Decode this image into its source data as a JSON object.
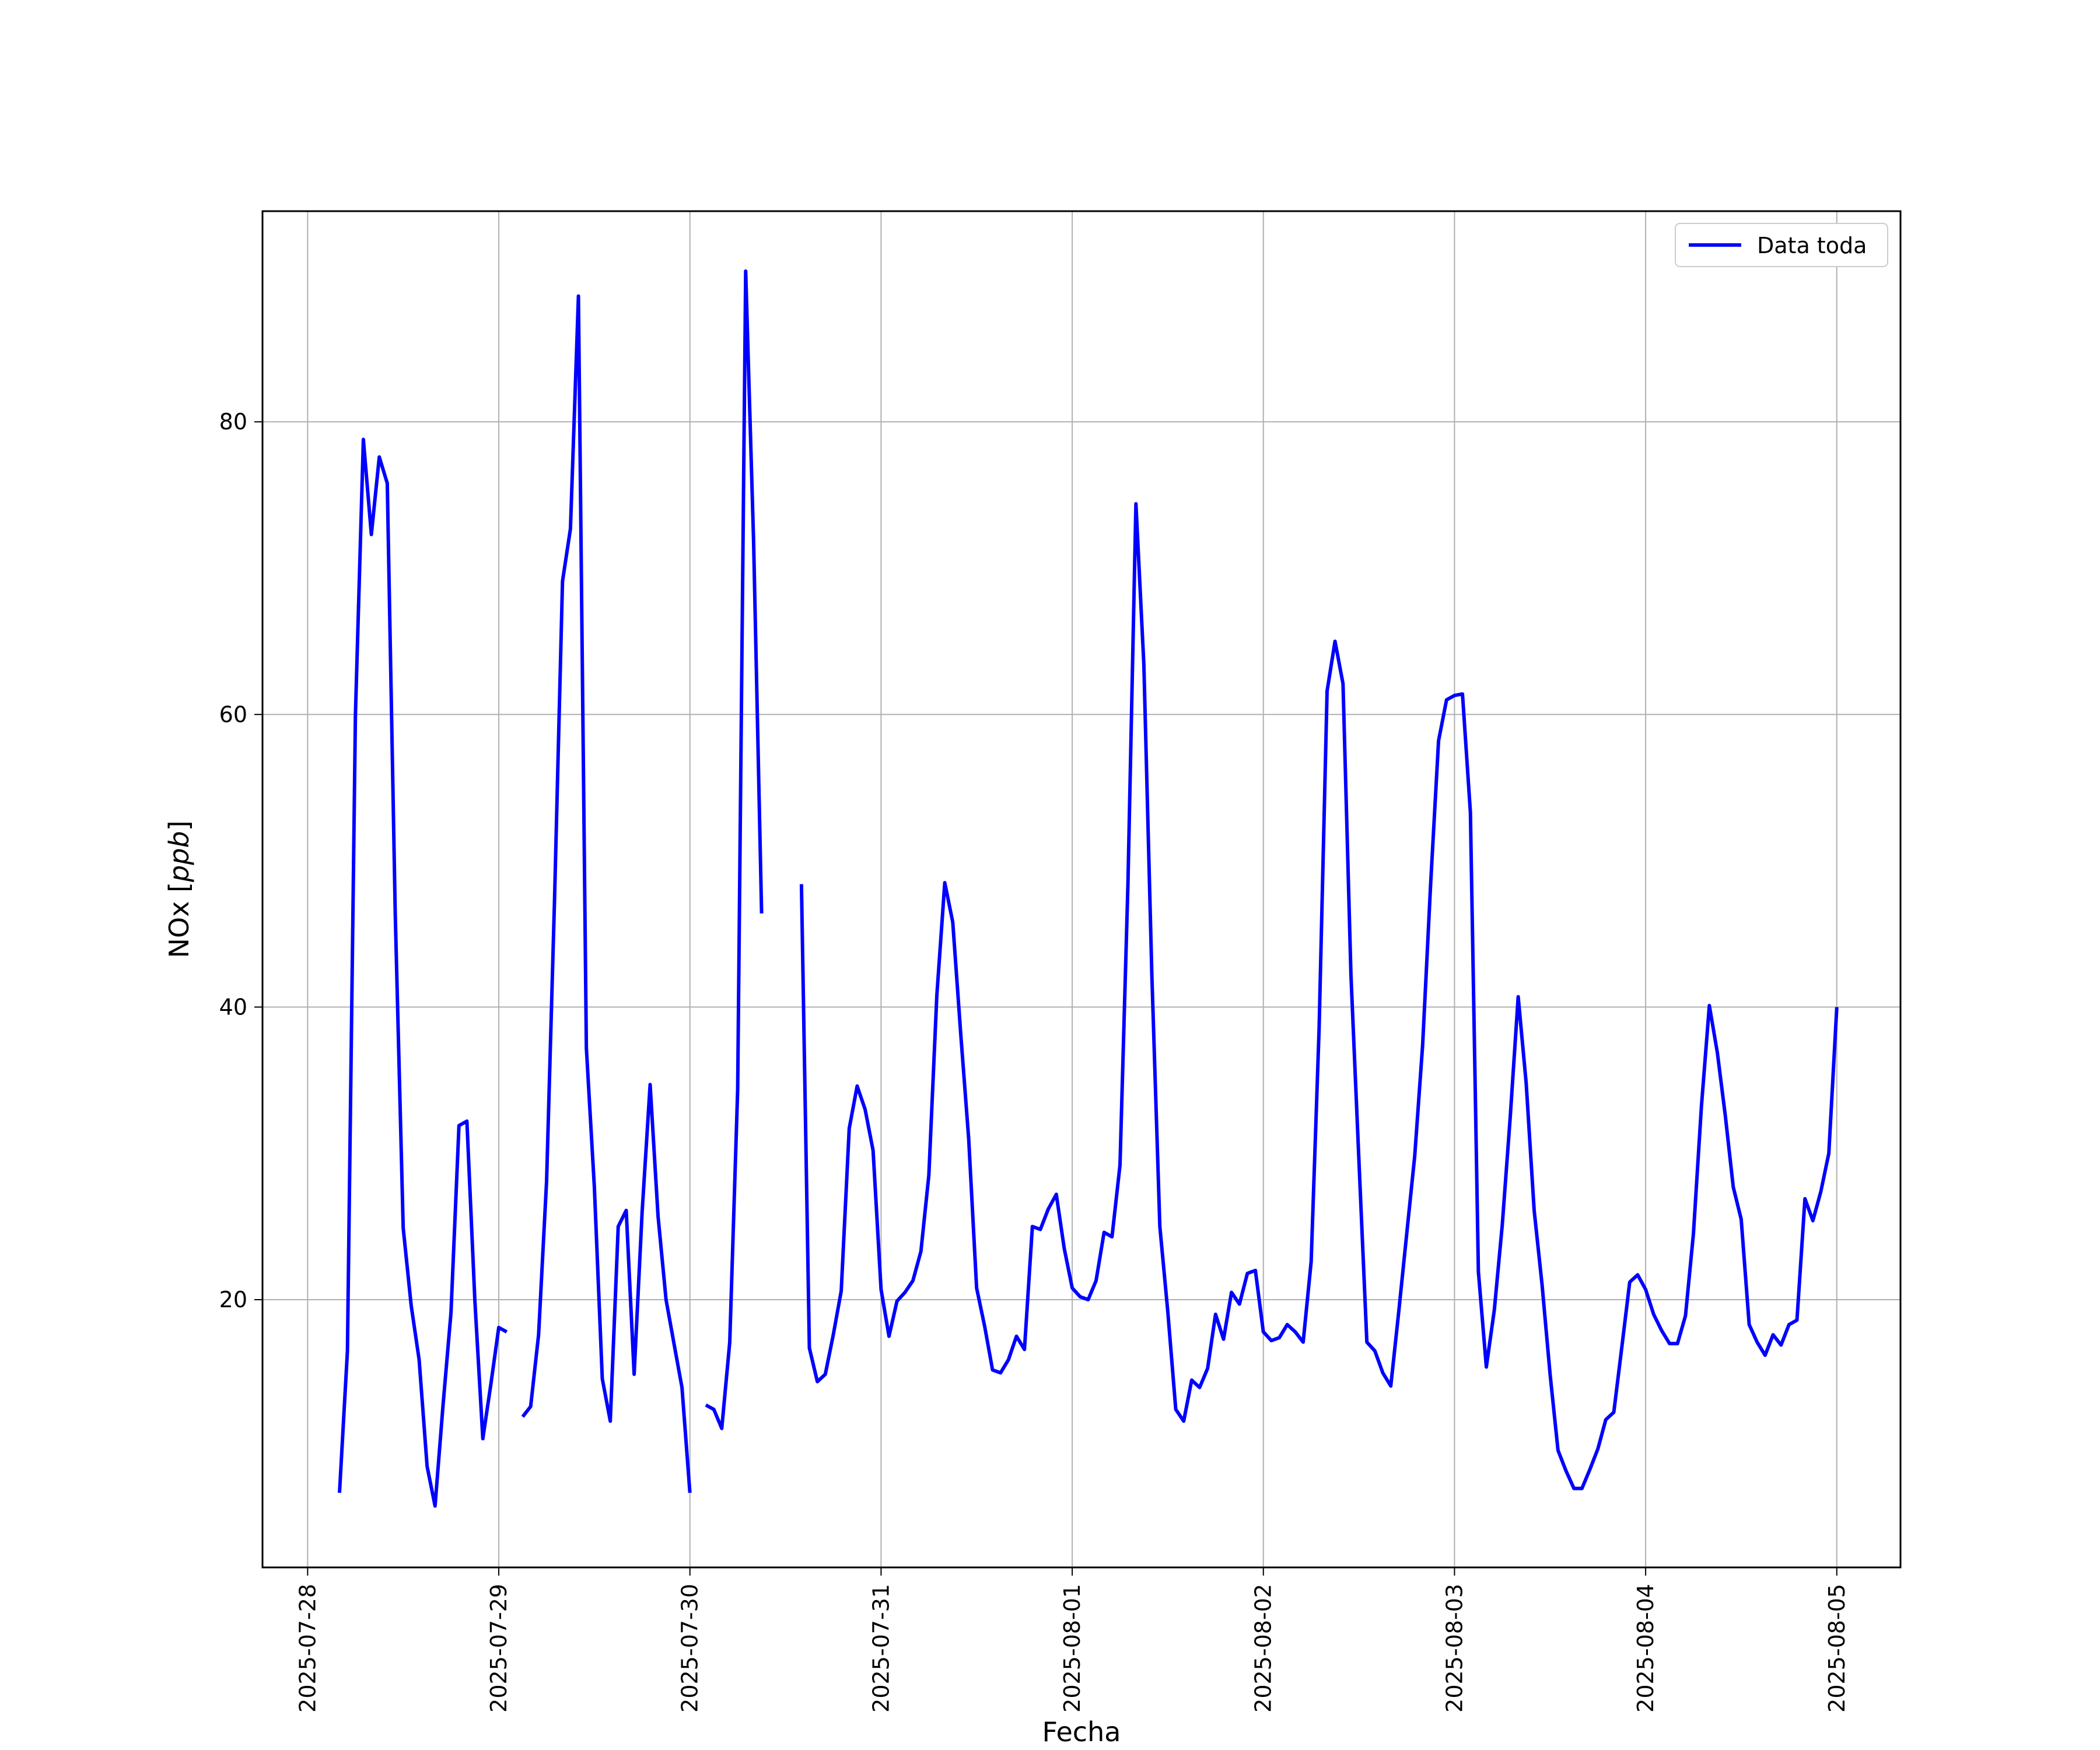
{
  "chart_data": {
    "type": "line",
    "title": "",
    "xlabel": "Fecha",
    "ylabel_prefix": "NOx [",
    "ylabel_unit": "ppb",
    "ylabel_suffix": "]",
    "x_tick_labels": [
      "2025-07-28",
      "2025-07-29",
      "2025-07-30",
      "2025-07-31",
      "2025-08-01",
      "2025-08-02",
      "2025-08-03",
      "2025-08-04",
      "2025-08-05"
    ],
    "y_ticks": [
      20,
      40,
      60,
      80
    ],
    "xlim": [
      "2025-07-27T18:20",
      "2025-08-05T08:00"
    ],
    "ylim": [
      1.7,
      94.4
    ],
    "grid": true,
    "legend_position": "upper-right",
    "series": [
      {
        "name": "Data toda",
        "color": "#0000ff",
        "points": [
          [
            "2025-07-28T04:00",
            6.8
          ],
          [
            "2025-07-28T05:00",
            16.5
          ],
          [
            "2025-07-28T06:00",
            60
          ],
          [
            "2025-07-28T07:00",
            78.8
          ],
          [
            "2025-07-28T08:00",
            72.3
          ],
          [
            "2025-07-28T09:00",
            77.6
          ],
          [
            "2025-07-28T10:00",
            75.8
          ],
          [
            "2025-07-28T11:00",
            46.3
          ],
          [
            "2025-07-28T12:00",
            24.9
          ],
          [
            "2025-07-28T13:00",
            19.6
          ],
          [
            "2025-07-28T14:00",
            15.9
          ],
          [
            "2025-07-28T15:00",
            8.6
          ],
          [
            "2025-07-28T16:00",
            5.9
          ],
          [
            "2025-07-28T17:00",
            12.8
          ],
          [
            "2025-07-28T18:00",
            19.1
          ],
          [
            "2025-07-28T19:00",
            31.9
          ],
          [
            "2025-07-28T20:00",
            32.2
          ],
          [
            "2025-07-28T21:00",
            19.9
          ],
          [
            "2025-07-28T22:00",
            10.5
          ],
          [
            "2025-07-28T23:00",
            14.2
          ],
          [
            "2025-07-29T00:00",
            18.1
          ],
          [
            "2025-07-29T01:00",
            17.8
          ],
          null,
          [
            "2025-07-29T03:00",
            12.0
          ],
          [
            "2025-07-29T04:00",
            12.7
          ],
          [
            "2025-07-29T05:00",
            17.6
          ],
          [
            "2025-07-29T06:00",
            28.1
          ],
          [
            "2025-07-29T07:00",
            47.3
          ],
          [
            "2025-07-29T08:00",
            69.1
          ],
          [
            "2025-07-29T09:00",
            72.7
          ],
          [
            "2025-07-29T10:00",
            88.6
          ],
          [
            "2025-07-29T11:00",
            37.2
          ],
          [
            "2025-07-29T12:00",
            27.7
          ],
          [
            "2025-07-29T13:00",
            14.6
          ],
          [
            "2025-07-29T14:00",
            11.7
          ],
          [
            "2025-07-29T15:00",
            25.0
          ],
          [
            "2025-07-29T16:00",
            26.1
          ],
          [
            "2025-07-29T17:00",
            14.9
          ],
          [
            "2025-07-29T18:00",
            26.0
          ],
          [
            "2025-07-29T19:00",
            34.7
          ],
          [
            "2025-07-29T20:00",
            25.7
          ],
          [
            "2025-07-29T21:00",
            20.0
          ],
          [
            "2025-07-29T22:00",
            17.0
          ],
          [
            "2025-07-29T23:00",
            14.0
          ],
          [
            "2025-07-30T00:00",
            6.8
          ],
          null,
          [
            "2025-07-30T02:00",
            12.8
          ],
          [
            "2025-07-30T03:00",
            12.5
          ],
          [
            "2025-07-30T04:00",
            11.2
          ],
          [
            "2025-07-30T05:00",
            17.1
          ],
          [
            "2025-07-30T06:00",
            34.4
          ],
          [
            "2025-07-30T07:00",
            90.3
          ],
          [
            "2025-07-30T08:00",
            71.8
          ],
          [
            "2025-07-30T09:00",
            46.4
          ],
          null,
          [
            "2025-07-30T14:00",
            48.4
          ],
          [
            "2025-07-30T15:00",
            16.7
          ],
          [
            "2025-07-30T16:00",
            14.4
          ],
          [
            "2025-07-30T17:00",
            14.9
          ],
          [
            "2025-07-30T18:00",
            17.6
          ],
          [
            "2025-07-30T19:00",
            20.6
          ],
          [
            "2025-07-30T20:00",
            31.7
          ],
          [
            "2025-07-30T21:00",
            34.6
          ],
          [
            "2025-07-30T22:00",
            33.0
          ],
          [
            "2025-07-30T23:00",
            30.2
          ],
          [
            "2025-07-31T00:00",
            20.7
          ],
          [
            "2025-07-31T01:00",
            17.5
          ],
          [
            "2025-07-31T02:00",
            19.9
          ],
          [
            "2025-07-31T03:00",
            20.5
          ],
          [
            "2025-07-31T04:00",
            21.3
          ],
          [
            "2025-07-31T05:00",
            23.3
          ],
          [
            "2025-07-31T06:00",
            28.5
          ],
          [
            "2025-07-31T07:00",
            40.8
          ],
          [
            "2025-07-31T08:00",
            48.5
          ],
          [
            "2025-07-31T09:00",
            45.8
          ],
          [
            "2025-07-31T10:00",
            38.2
          ],
          [
            "2025-07-31T11:00",
            31.0
          ],
          [
            "2025-07-31T12:00",
            20.8
          ],
          [
            "2025-07-31T13:00",
            18.2
          ],
          [
            "2025-07-31T14:00",
            15.2
          ],
          [
            "2025-07-31T15:00",
            15.0
          ],
          [
            "2025-07-31T16:00",
            15.9
          ],
          [
            "2025-07-31T17:00",
            17.5
          ],
          [
            "2025-07-31T18:00",
            16.6
          ],
          [
            "2025-07-31T19:00",
            25.0
          ],
          [
            "2025-07-31T20:00",
            24.8
          ],
          [
            "2025-07-31T21:00",
            26.2
          ],
          [
            "2025-07-31T22:00",
            27.2
          ],
          [
            "2025-07-31T23:00",
            23.5
          ],
          [
            "2025-08-01T00:00",
            20.8
          ],
          [
            "2025-08-01T01:00",
            20.2
          ],
          [
            "2025-08-01T02:00",
            20.0
          ],
          [
            "2025-08-01T03:00",
            21.3
          ],
          [
            "2025-08-01T04:00",
            24.6
          ],
          [
            "2025-08-01T05:00",
            24.3
          ],
          [
            "2025-08-01T06:00",
            29.2
          ],
          [
            "2025-08-01T07:00",
            48.4
          ],
          [
            "2025-08-01T08:00",
            74.4
          ],
          [
            "2025-08-01T09:00",
            63.4
          ],
          [
            "2025-08-01T10:00",
            42.2
          ],
          [
            "2025-08-01T11:00",
            25.0
          ],
          [
            "2025-08-01T12:00",
            19.2
          ],
          [
            "2025-08-01T13:00",
            12.5
          ],
          [
            "2025-08-01T14:00",
            11.7
          ],
          [
            "2025-08-01T15:00",
            14.5
          ],
          [
            "2025-08-01T16:00",
            14.0
          ],
          [
            "2025-08-01T17:00",
            15.3
          ],
          [
            "2025-08-01T18:00",
            19.0
          ],
          [
            "2025-08-01T19:00",
            17.3
          ],
          [
            "2025-08-01T20:00",
            20.5
          ],
          [
            "2025-08-01T21:00",
            19.7
          ],
          [
            "2025-08-01T22:00",
            21.8
          ],
          [
            "2025-08-01T23:00",
            22.0
          ],
          [
            "2025-08-02T00:00",
            17.8
          ],
          [
            "2025-08-02T01:00",
            17.2
          ],
          [
            "2025-08-02T02:00",
            17.4
          ],
          [
            "2025-08-02T03:00",
            18.3
          ],
          [
            "2025-08-02T04:00",
            17.8
          ],
          [
            "2025-08-02T05:00",
            17.1
          ],
          [
            "2025-08-02T06:00",
            22.6
          ],
          [
            "2025-08-02T07:00",
            38.5
          ],
          [
            "2025-08-02T08:00",
            61.6
          ],
          [
            "2025-08-02T09:00",
            65.0
          ],
          [
            "2025-08-02T10:00",
            62.1
          ],
          [
            "2025-08-02T11:00",
            42.2
          ],
          [
            "2025-08-02T12:00",
            29.5
          ],
          [
            "2025-08-02T13:00",
            17.1
          ],
          [
            "2025-08-02T14:00",
            16.5
          ],
          [
            "2025-08-02T15:00",
            15.0
          ],
          [
            "2025-08-02T16:00",
            14.1
          ],
          [
            "2025-08-02T17:00",
            19.2
          ],
          [
            "2025-08-02T18:00",
            24.5
          ],
          [
            "2025-08-02T19:00",
            29.8
          ],
          [
            "2025-08-02T20:00",
            37.4
          ],
          [
            "2025-08-02T21:00",
            48.4
          ],
          [
            "2025-08-02T22:00",
            58.2
          ],
          [
            "2025-08-02T23:00",
            61.0
          ],
          [
            "2025-08-03T00:00",
            61.3
          ],
          [
            "2025-08-03T01:00",
            61.4
          ],
          [
            "2025-08-03T02:00",
            53.3
          ],
          [
            "2025-08-03T03:00",
            21.9
          ],
          [
            "2025-08-03T04:00",
            15.4
          ],
          [
            "2025-08-03T05:00",
            19.3
          ],
          [
            "2025-08-03T06:00",
            25.1
          ],
          [
            "2025-08-03T07:00",
            32.5
          ],
          [
            "2025-08-03T08:00",
            40.7
          ],
          [
            "2025-08-03T09:00",
            34.8
          ],
          [
            "2025-08-03T10:00",
            26.1
          ],
          [
            "2025-08-03T11:00",
            21.0
          ],
          [
            "2025-08-03T12:00",
            14.9
          ],
          [
            "2025-08-03T13:00",
            9.7
          ],
          [
            "2025-08-03T14:00",
            8.3
          ],
          [
            "2025-08-03T15:00",
            7.1
          ],
          [
            "2025-08-03T16:00",
            7.1
          ],
          [
            "2025-08-03T17:00",
            8.4
          ],
          [
            "2025-08-03T18:00",
            9.8
          ],
          [
            "2025-08-03T19:00",
            11.8
          ],
          [
            "2025-08-03T20:00",
            12.3
          ],
          [
            "2025-08-03T21:00",
            16.7
          ],
          [
            "2025-08-03T22:00",
            21.2
          ],
          [
            "2025-08-03T23:00",
            21.7
          ],
          [
            "2025-08-04T00:00",
            20.7
          ],
          [
            "2025-08-04T01:00",
            19.0
          ],
          [
            "2025-08-04T02:00",
            17.9
          ],
          [
            "2025-08-04T03:00",
            17.0
          ],
          [
            "2025-08-04T04:00",
            17.0
          ],
          [
            "2025-08-04T05:00",
            18.9
          ],
          [
            "2025-08-04T06:00",
            24.5
          ],
          [
            "2025-08-04T07:00",
            33.2
          ],
          [
            "2025-08-04T08:00",
            40.1
          ],
          [
            "2025-08-04T09:00",
            36.9
          ],
          [
            "2025-08-04T10:00",
            32.6
          ],
          [
            "2025-08-04T11:00",
            27.7
          ],
          [
            "2025-08-04T12:00",
            25.5
          ],
          [
            "2025-08-04T13:00",
            18.3
          ],
          [
            "2025-08-04T14:00",
            17.1
          ],
          [
            "2025-08-04T15:00",
            16.2
          ],
          [
            "2025-08-04T16:00",
            17.6
          ],
          [
            "2025-08-04T17:00",
            16.9
          ],
          [
            "2025-08-04T18:00",
            18.3
          ],
          [
            "2025-08-04T19:00",
            18.6
          ],
          [
            "2025-08-04T20:00",
            26.9
          ],
          [
            "2025-08-04T21:00",
            25.4
          ],
          [
            "2025-08-04T22:00",
            27.4
          ],
          [
            "2025-08-04T23:00",
            30.0
          ],
          [
            "2025-08-05T00:00",
            40.0
          ]
        ]
      }
    ]
  }
}
